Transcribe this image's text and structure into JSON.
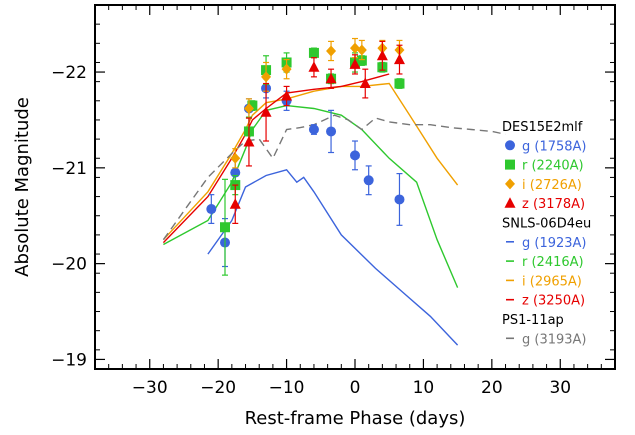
{
  "chart_data": {
    "type": "line",
    "xlabel": "Rest-frame Phase (days)",
    "ylabel": "Absolute Magnitude",
    "xlim": [
      -38,
      38
    ],
    "ylim": [
      -18.9,
      -22.7
    ],
    "y_inverted": true,
    "x_ticks": [
      -30,
      -20,
      -10,
      0,
      10,
      20,
      30
    ],
    "x_tick_labels": [
      "−30",
      "−20",
      "−10",
      "0",
      "10",
      "20",
      "30"
    ],
    "y_ticks": [
      -19,
      -20,
      -21,
      -22
    ],
    "y_tick_labels": [
      "−19",
      "−20",
      "−21",
      "−22"
    ],
    "grid": false,
    "legend_position": "right",
    "colors": {
      "g": "#3c64dc",
      "r": "#2ec82e",
      "i": "#f0a000",
      "z": "#e60000",
      "ps1": "#777777",
      "axes": "#000000"
    },
    "legend": [
      {
        "kind": "header",
        "label": "DES15E2mlf"
      },
      {
        "kind": "marker",
        "marker": "circle",
        "color": "#3c64dc",
        "label": "g (1758A)"
      },
      {
        "kind": "marker",
        "marker": "square",
        "color": "#2ec82e",
        "label": "r (2240A)"
      },
      {
        "kind": "marker",
        "marker": "diamond",
        "color": "#f0a000",
        "label": "i (2726A)"
      },
      {
        "kind": "marker",
        "marker": "triangle",
        "color": "#e60000",
        "label": "z (3178A)"
      },
      {
        "kind": "header",
        "label": "SNLS-06D4eu"
      },
      {
        "kind": "line",
        "dash": "solid",
        "color": "#3c64dc",
        "label": "g (1923A)"
      },
      {
        "kind": "line",
        "dash": "solid",
        "color": "#2ec82e",
        "label": "r (2416A)"
      },
      {
        "kind": "line",
        "dash": "solid",
        "color": "#f0a000",
        "label": "i (2965A)"
      },
      {
        "kind": "line",
        "dash": "solid",
        "color": "#e60000",
        "label": "z (3250A)"
      },
      {
        "kind": "header",
        "label": "PS1-11ap"
      },
      {
        "kind": "line",
        "dash": "dashed",
        "color": "#777777",
        "label": "g (3193A)"
      }
    ],
    "line_series": [
      {
        "name": "SNLS-06D4eu g (1923A)",
        "color": "#3c64dc",
        "dash": "solid",
        "x": [
          -21.5,
          -18,
          -16,
          -13,
          -10,
          -8.5,
          -7.5,
          -6,
          -2,
          3,
          7,
          11,
          15
        ],
        "y": [
          -20.1,
          -20.45,
          -20.8,
          -20.92,
          -20.98,
          -20.85,
          -20.9,
          -20.75,
          -20.3,
          -19.95,
          -19.7,
          -19.45,
          -19.15
        ]
      },
      {
        "name": "SNLS-06D4eu r (2416A)",
        "color": "#2ec82e",
        "dash": "solid",
        "x": [
          -28,
          -21.5,
          -18,
          -16,
          -15,
          -13,
          -10,
          -6,
          -2,
          1,
          5,
          9,
          12,
          15
        ],
        "y": [
          -20.2,
          -20.45,
          -20.85,
          -21.2,
          -21.4,
          -21.6,
          -21.65,
          -21.62,
          -21.55,
          -21.4,
          -21.1,
          -20.85,
          -20.25,
          -19.75
        ]
      },
      {
        "name": "SNLS-06D4eu i (2965A)",
        "color": "#f0a000",
        "dash": "solid",
        "x": [
          -28,
          -21.5,
          -18,
          -16,
          -15,
          -13,
          -10,
          -6,
          -2,
          1,
          5,
          8,
          12,
          15
        ],
        "y": [
          -20.25,
          -20.75,
          -21.15,
          -21.4,
          -21.55,
          -21.68,
          -21.72,
          -21.8,
          -21.85,
          -21.85,
          -21.88,
          -21.55,
          -21.1,
          -20.82
        ]
      },
      {
        "name": "SNLS-06D4eu z (3250A)",
        "color": "#e60000",
        "dash": "solid",
        "x": [
          -28,
          -21.5,
          -18,
          -16,
          -15,
          -13,
          -10,
          -6,
          -2,
          1,
          5
        ],
        "y": [
          -20.22,
          -20.7,
          -21.1,
          -21.35,
          -21.5,
          -21.62,
          -21.78,
          -21.82,
          -21.85,
          -21.9,
          -21.98
        ]
      },
      {
        "name": "PS1-11ap g (3193A)",
        "color": "#777777",
        "dash": "dashed",
        "x": [
          -28,
          -21.5,
          -18,
          -16,
          -14,
          -12,
          -10,
          -8,
          -6,
          -3,
          -1,
          1,
          3,
          5,
          8,
          11,
          14,
          17,
          20,
          22
        ],
        "y": [
          -20.25,
          -20.9,
          -21.15,
          -21.28,
          -21.3,
          -21.1,
          -21.4,
          -21.42,
          -21.45,
          -21.55,
          -21.5,
          -21.4,
          -21.52,
          -21.48,
          -21.45,
          -21.45,
          -21.42,
          -21.4,
          -21.38,
          -21.35
        ]
      }
    ],
    "point_series": [
      {
        "name": "DES15E2mlf g (1758A)",
        "marker": "circle",
        "color": "#3c64dc",
        "points": [
          {
            "x": -21,
            "y": -20.57,
            "err": 0.15
          },
          {
            "x": -19,
            "y": -20.22,
            "err": 0.25
          },
          {
            "x": -17.5,
            "y": -20.95,
            "err": 0.15
          },
          {
            "x": -15.5,
            "y": -21.62,
            "err": 0.1
          },
          {
            "x": -13,
            "y": -21.83,
            "err": 0.1
          },
          {
            "x": -10,
            "y": -21.7,
            "err": 0.1
          },
          {
            "x": -6,
            "y": -21.4,
            "err": 0.05
          },
          {
            "x": -3.5,
            "y": -21.38,
            "err": 0.22
          },
          {
            "x": 0,
            "y": -21.13,
            "err": 0.15
          },
          {
            "x": 2,
            "y": -20.87,
            "err": 0.15
          },
          {
            "x": 6.5,
            "y": -20.67,
            "err": 0.27
          }
        ]
      },
      {
        "name": "DES15E2mlf r (2240A)",
        "marker": "square",
        "color": "#2ec82e",
        "points": [
          {
            "x": -19,
            "y": -20.38,
            "err": 0.5
          },
          {
            "x": -17.5,
            "y": -20.82,
            "err": 0.1
          },
          {
            "x": -15.5,
            "y": -21.38,
            "err": 0.15
          },
          {
            "x": -15,
            "y": -21.65,
            "err": 0.05
          },
          {
            "x": -13,
            "y": -22.02,
            "err": 0.15
          },
          {
            "x": -10,
            "y": -22.1,
            "err": 0.1
          },
          {
            "x": -6,
            "y": -22.2,
            "err": 0.05
          },
          {
            "x": -3.5,
            "y": -21.93,
            "err": 0.05
          },
          {
            "x": 0,
            "y": -22.1,
            "err": 0.1
          },
          {
            "x": 1,
            "y": -22.12,
            "err": 0.05
          },
          {
            "x": 4,
            "y": -22.05,
            "err": 0.05
          },
          {
            "x": 6.5,
            "y": -21.88,
            "err": 0.05
          }
        ]
      },
      {
        "name": "DES15E2mlf i (2726A)",
        "marker": "diamond",
        "color": "#f0a000",
        "points": [
          {
            "x": -17.5,
            "y": -21.1,
            "err": 0.1
          },
          {
            "x": -15.5,
            "y": -21.62,
            "err": 0.1
          },
          {
            "x": -13,
            "y": -21.95,
            "err": 0.15
          },
          {
            "x": -10,
            "y": -22.03,
            "err": 0.1
          },
          {
            "x": -3.5,
            "y": -22.22,
            "err": 0.1
          },
          {
            "x": 0,
            "y": -22.25,
            "err": 0.1
          },
          {
            "x": 1,
            "y": -22.23,
            "err": 0.1
          },
          {
            "x": 4,
            "y": -22.25,
            "err": 0.08
          },
          {
            "x": 6.5,
            "y": -22.23,
            "err": 0.1
          }
        ]
      },
      {
        "name": "DES15E2mlf z (3178A)",
        "marker": "triangle",
        "color": "#e60000",
        "points": [
          {
            "x": -17.5,
            "y": -20.62,
            "err": 0.2
          },
          {
            "x": -15.5,
            "y": -21.27,
            "err": 0.25
          },
          {
            "x": -13,
            "y": -21.58,
            "err": 0.3
          },
          {
            "x": -10,
            "y": -21.75,
            "err": 0.1
          },
          {
            "x": -6,
            "y": -22.05,
            "err": 0.1
          },
          {
            "x": -3.5,
            "y": -21.93,
            "err": 0.1
          },
          {
            "x": 0,
            "y": -22.08,
            "err": 0.1
          },
          {
            "x": 1.5,
            "y": -21.88,
            "err": 0.15
          },
          {
            "x": 4,
            "y": -22.17,
            "err": 0.15
          },
          {
            "x": 6.5,
            "y": -22.13,
            "err": 0.15
          }
        ]
      }
    ]
  }
}
